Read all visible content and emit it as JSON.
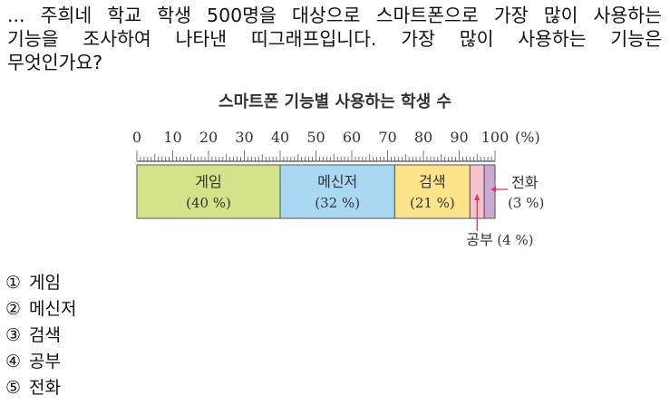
{
  "question": {
    "line1": "... 주희네 학교 학생 500명을 대상으로 스마트폰으로 가장 많이 사용하는",
    "line2": "기능을 조사하여 나타낸 띠그래프입니다. 가장 많이 사용하는 기능은",
    "line3": "무엇인가요?"
  },
  "chart_data": {
    "type": "bar",
    "subtype": "percentage-strip",
    "title": "스마트폰 기능별 사용하는 학생 수",
    "axis": {
      "min": 0,
      "max": 100,
      "ticks": [
        "0",
        "10",
        "20",
        "30",
        "40",
        "50",
        "60",
        "70",
        "80",
        "90",
        "100"
      ],
      "unit_label": "(%)"
    },
    "segments": [
      {
        "label": "게임",
        "value": 40,
        "value_label": "(40 %)",
        "color": "#d4e38a"
      },
      {
        "label": "메신저",
        "value": 32,
        "value_label": "(32 %)",
        "color": "#a9d8f2"
      },
      {
        "label": "검색",
        "value": 21,
        "value_label": "(21 %)",
        "color": "#fde48a"
      },
      {
        "label": "공부",
        "value": 4,
        "value_label": "(4 %)",
        "color": "#f6c2cc"
      },
      {
        "label": "전화",
        "value": 3,
        "value_label": "(3 %)",
        "color": "#c9aad5"
      }
    ],
    "callouts": {
      "phone_name": "전화",
      "phone_value": "(3 %)",
      "study_name": "공부",
      "study_value": "(4 %)"
    },
    "arrow_color": "#e0336b"
  },
  "choices": [
    {
      "num": "①",
      "label": "게임"
    },
    {
      "num": "②",
      "label": "메신저"
    },
    {
      "num": "③",
      "label": "검색"
    },
    {
      "num": "④",
      "label": "공부"
    },
    {
      "num": "⑤",
      "label": "전화"
    }
  ]
}
